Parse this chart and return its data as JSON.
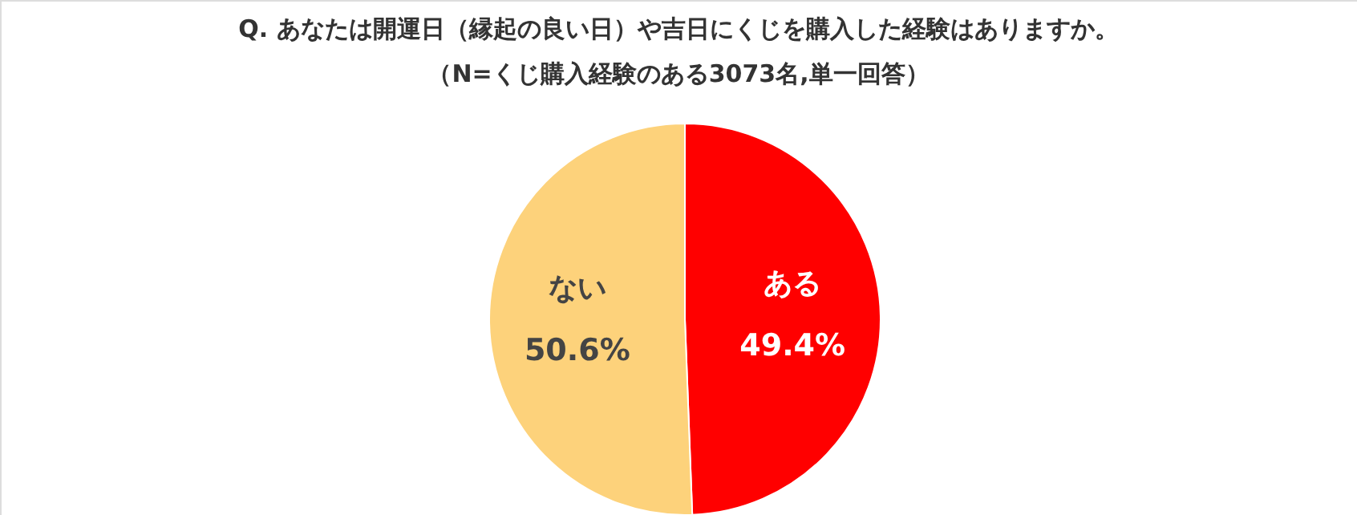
{
  "chart_data": {
    "type": "pie",
    "title": "Q. あなたは開運日（縁起の良い日）や吉日にくじを購入した経験はありますか。",
    "subtitle": "（N=くじ購入経験のある3073名,単一回答）",
    "categories": [
      "ある",
      "ない"
    ],
    "values": [
      49.4,
      50.6
    ],
    "colors": [
      "#ff0000",
      "#fdd27b"
    ],
    "value_labels": [
      "49.4%",
      "50.6%"
    ]
  }
}
